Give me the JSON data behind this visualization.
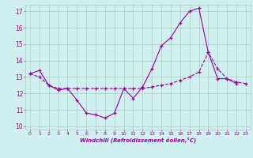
{
  "title": "",
  "xlabel": "Windchill (Refroidissement éolien,°C)",
  "background_color": "#cff0ee",
  "grid_color": "#b0c8c8",
  "line_color": "#990099",
  "xlim": [
    -0.5,
    23.5
  ],
  "ylim": [
    9.8,
    17.4
  ],
  "yticks": [
    10,
    11,
    12,
    13,
    14,
    15,
    16,
    17
  ],
  "xticks": [
    0,
    1,
    2,
    3,
    4,
    5,
    6,
    7,
    8,
    9,
    10,
    11,
    12,
    13,
    14,
    15,
    16,
    17,
    18,
    19,
    20,
    21,
    22,
    23
  ],
  "series1_x": [
    0,
    1,
    2,
    3,
    4,
    5,
    6,
    7,
    8,
    9,
    10,
    11,
    12,
    13,
    14,
    15,
    16,
    17,
    18,
    19,
    20,
    21,
    22
  ],
  "series1_y": [
    13.2,
    13.4,
    12.5,
    12.2,
    12.3,
    11.6,
    10.8,
    10.7,
    10.5,
    10.8,
    12.3,
    11.7,
    12.4,
    13.5,
    14.9,
    15.4,
    16.3,
    17.0,
    17.2,
    14.5,
    12.9,
    12.9,
    12.6
  ],
  "series2_x": [
    0,
    1,
    2,
    3,
    4,
    5,
    6,
    7,
    8,
    9,
    10,
    11,
    12,
    13,
    14,
    15,
    16,
    17,
    18,
    19,
    20,
    21,
    22,
    23
  ],
  "series2_y": [
    13.2,
    13.0,
    12.5,
    12.3,
    12.3,
    12.3,
    12.3,
    12.3,
    12.3,
    12.3,
    12.3,
    12.3,
    12.3,
    12.4,
    12.5,
    12.6,
    12.8,
    13.0,
    13.3,
    14.5,
    13.5,
    12.9,
    12.7,
    12.6
  ]
}
